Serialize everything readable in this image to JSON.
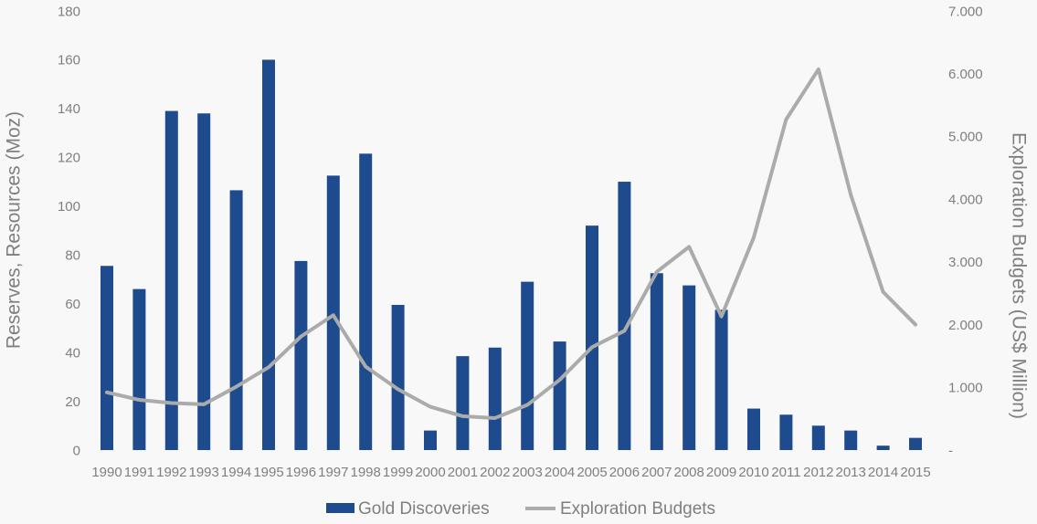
{
  "chart_data": {
    "type": "combo-bar-line",
    "title": "",
    "categories": [
      "1990",
      "1991",
      "1992",
      "1993",
      "1994",
      "1995",
      "1996",
      "1997",
      "1998",
      "1999",
      "2000",
      "2001",
      "2002",
      "2003",
      "2004",
      "2005",
      "2006",
      "2007",
      "2008",
      "2009",
      "2010",
      "2011",
      "2012",
      "2013",
      "2014",
      "2015"
    ],
    "series": [
      {
        "name": "Gold Discoveries",
        "type": "bar",
        "axis": "left",
        "color": "#1e4b8e",
        "values": [
          75.5,
          66,
          139,
          138,
          106.5,
          160,
          77.5,
          112.5,
          121.5,
          59.5,
          8,
          38.5,
          42,
          69,
          44.5,
          92,
          110,
          72.5,
          67.5,
          57.5,
          17,
          14.5,
          10,
          8,
          1.8,
          5
        ]
      },
      {
        "name": "Exploration Budgets",
        "type": "line",
        "axis": "right",
        "color": "#ababab",
        "values": [
          920,
          800,
          750,
          730,
          1010,
          1320,
          1810,
          2150,
          1330,
          970,
          690,
          540,
          510,
          720,
          1120,
          1640,
          1900,
          2840,
          3240,
          2130,
          3390,
          5270,
          6070,
          4070,
          2520,
          2000
        ]
      }
    ],
    "left_axis": {
      "title": "Reserves, Resources (Moz)",
      "min": 0,
      "max": 180,
      "tick_step": 20,
      "tick_labels": [
        "0",
        "20",
        "40",
        "60",
        "80",
        "100",
        "120",
        "140",
        "160",
        "180"
      ]
    },
    "right_axis": {
      "title": "Exploration Budgets (US$ Million)",
      "min": 0,
      "max": 7000,
      "tick_step": 1000,
      "tick_labels": [
        "-",
        "1.000",
        "2.000",
        "3.000",
        "4.000",
        "5.000",
        "6.000",
        "7.000"
      ]
    },
    "legend": [
      "Gold Discoveries",
      "Exploration Budgets"
    ],
    "legend_position": "bottom",
    "grid": false,
    "background_color": "#f8f8f8",
    "text_color": "#7f7f7f"
  }
}
